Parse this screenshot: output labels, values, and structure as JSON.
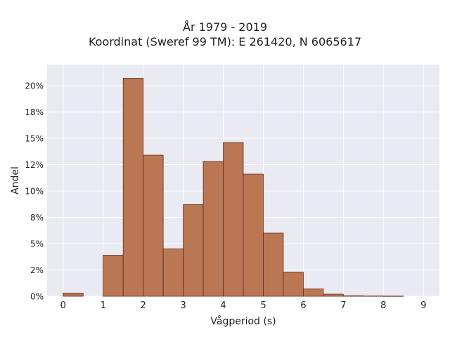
{
  "chart_data": {
    "type": "bar",
    "title_lines": [
      "År 1979 - 2019",
      "Koordinat (Sweref 99 TM): E 261420, N 6065617"
    ],
    "xlabel": "Vågperiod (s)",
    "ylabel": "Andel",
    "x_ticks": [
      "0",
      "1",
      "2",
      "3",
      "4",
      "5",
      "6",
      "7",
      "8",
      "9"
    ],
    "x_tick_values": [
      0,
      1,
      2,
      3,
      4,
      5,
      6,
      7,
      8,
      9
    ],
    "y_ticks": [
      "0%",
      "2%",
      "5%",
      "8%",
      "10%",
      "12%",
      "15%",
      "18%",
      "20%"
    ],
    "y_tick_values": [
      0,
      2.5,
      5,
      7.5,
      10,
      12.5,
      15,
      17.5,
      20
    ],
    "xlim": [
      -0.4,
      9.4
    ],
    "ylim": [
      0,
      22
    ],
    "bin_width": 0.5,
    "bins_start": [
      0,
      0.5,
      1,
      1.5,
      2,
      2.5,
      3,
      3.5,
      4,
      4.5,
      5,
      5.5,
      6,
      6.5,
      7,
      7.5,
      8,
      8.5
    ],
    "values": [
      0.3,
      0,
      3.9,
      20.7,
      13.4,
      4.5,
      8.7,
      12.8,
      14.6,
      11.6,
      6.0,
      2.3,
      0.7,
      0.2,
      0.05,
      0.03,
      0.02,
      0
    ],
    "grid": true,
    "legend": "none",
    "colors": {
      "bar_fill": "#bb7654",
      "bar_stroke": "#5a2e1a",
      "plot_background": "#eaeaf2",
      "grid": "#ffffff"
    }
  }
}
